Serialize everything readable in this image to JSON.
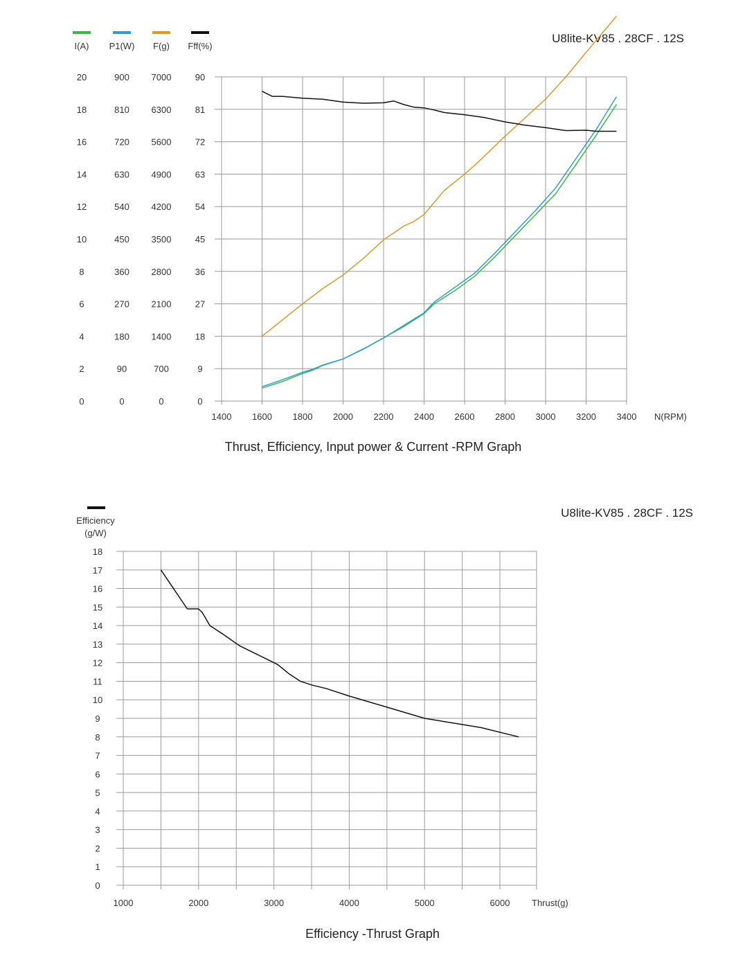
{
  "chart_data": [
    {
      "type": "line",
      "model_label": "U8lite-KV85 . 28CF . 12S",
      "caption": "Thrust, Efficiency, Input power & Current -RPM Graph",
      "xlabel": "N(RPM)",
      "xlim": [
        1400,
        3400
      ],
      "x_ticks": [
        "1400",
        "1600",
        "1800",
        "2000",
        "2200",
        "2400",
        "2600",
        "2800",
        "3000",
        "3200",
        "3400"
      ],
      "axes": [
        {
          "header": "I(A)",
          "ticks": [
            "20",
            "18",
            "16",
            "14",
            "12",
            "10",
            "8",
            "6",
            "4",
            "2",
            "0"
          ],
          "ylim": [
            0,
            20
          ]
        },
        {
          "header": "P1(W)",
          "ticks": [
            "900",
            "810",
            "720",
            "630",
            "540",
            "450",
            "360",
            "270",
            "180",
            "90",
            "0"
          ],
          "ylim": [
            0,
            900
          ]
        },
        {
          "header": "F(g)",
          "ticks": [
            "7000",
            "6300",
            "5600",
            "4900",
            "4200",
            "3500",
            "2800",
            "2100",
            "1400",
            "700",
            "0"
          ],
          "ylim": [
            0,
            7000
          ]
        },
        {
          "header": "Fff(%)",
          "ticks": [
            "90",
            "81",
            "72",
            "63",
            "54",
            "45",
            "36",
            "27",
            "18",
            "9",
            "0"
          ],
          "ylim": [
            0,
            90
          ]
        }
      ],
      "series": [
        {
          "name": "I(A)",
          "color": "#3cb54a",
          "axis": 0,
          "x": [
            1600,
            1700,
            1800,
            1850,
            1900,
            2000,
            2100,
            2200,
            2300,
            2400,
            2450,
            2550,
            2650,
            2750,
            2850,
            2950,
            3050,
            3150,
            3250,
            3350
          ],
          "y": [
            0.8,
            1.2,
            1.7,
            1.9,
            2.2,
            2.6,
            3.2,
            3.9,
            4.6,
            5.4,
            6.0,
            6.8,
            7.7,
            8.9,
            10.2,
            11.5,
            12.8,
            14.6,
            16.4,
            18.3
          ]
        },
        {
          "name": "P1(W)",
          "color": "#2e9bd6",
          "axis": 1,
          "x": [
            1600,
            1700,
            1800,
            1850,
            1900,
            2000,
            2100,
            2200,
            2300,
            2400,
            2450,
            2550,
            2650,
            2750,
            2850,
            2950,
            3050,
            3150,
            3250,
            3350
          ],
          "y": [
            40,
            59,
            80,
            88,
            100,
            117,
            145,
            175,
            210,
            245,
            275,
            315,
            355,
            411,
            470,
            529,
            592,
            673,
            754,
            845
          ]
        },
        {
          "name": "F(g)",
          "color": "#d89a2a",
          "axis": 2,
          "x": [
            1600,
            1700,
            1800,
            1900,
            2000,
            2100,
            2200,
            2300,
            2350,
            2400,
            2500,
            2600,
            2650,
            2700,
            2800,
            2900,
            3000,
            3100,
            3200,
            3350
          ],
          "y": [
            1400,
            1750,
            2100,
            2430,
            2720,
            3080,
            3480,
            3780,
            3880,
            4030,
            4550,
            4900,
            5090,
            5300,
            5720,
            6120,
            6520,
            7000,
            7530,
            8310
          ]
        },
        {
          "name": "Fff(%)",
          "color": "#111111",
          "axis": 3,
          "x": [
            1600,
            1650,
            1700,
            1800,
            1900,
            2000,
            2100,
            2200,
            2250,
            2300,
            2350,
            2400,
            2450,
            2500,
            2600,
            2700,
            2800,
            2900,
            3000,
            3050,
            3100,
            3200,
            3250,
            3350
          ],
          "y": [
            86.0,
            84.6,
            84.6,
            84.1,
            83.8,
            83.0,
            82.7,
            82.8,
            83.3,
            82.3,
            81.6,
            81.4,
            80.8,
            80.1,
            79.5,
            78.7,
            77.5,
            76.6,
            75.9,
            75.5,
            75.1,
            75.2,
            74.9,
            74.9
          ]
        }
      ]
    },
    {
      "type": "line",
      "model_label": "U8lite-KV85 . 28CF . 12S",
      "caption": "Efficiency -Thrust Graph",
      "ylabel_line1": "Efficiency",
      "ylabel_line2": "(g/W)",
      "xlabel": "Thrust(g)",
      "xlim": [
        1000,
        6000
      ],
      "ylim": [
        0,
        18
      ],
      "x_ticks": [
        "1000",
        "2000",
        "3000",
        "4000",
        "5000",
        "6000"
      ],
      "y_ticks": [
        "18",
        "17",
        "16",
        "15",
        "14",
        "13",
        "12",
        "11",
        "10",
        "9",
        "8",
        "7",
        "6",
        "5",
        "4",
        "3",
        "2",
        "1",
        "0"
      ],
      "series": [
        {
          "name": "Efficiency",
          "color": "#111111",
          "x": [
            1500,
            1850,
            2000,
            2050,
            2150,
            2300,
            2550,
            2750,
            2900,
            3050,
            3200,
            3350,
            3500,
            3700,
            4000,
            4500,
            5000,
            5300,
            5750,
            6250
          ],
          "y": [
            17.0,
            14.9,
            14.9,
            14.7,
            14.0,
            13.6,
            12.9,
            12.5,
            12.2,
            11.9,
            11.4,
            11.0,
            10.8,
            10.6,
            10.2,
            9.6,
            9.0,
            8.8,
            8.5,
            8.0
          ]
        }
      ]
    }
  ]
}
